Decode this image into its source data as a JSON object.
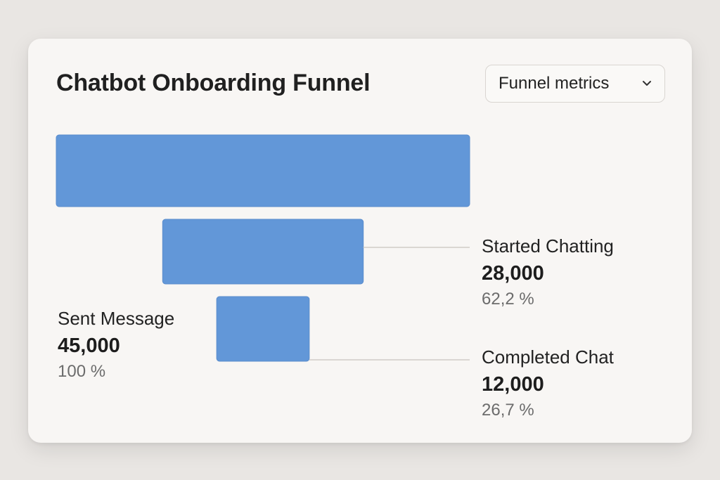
{
  "card": {
    "title": "Chatbot Onboarding Funnel",
    "dropdown": {
      "selected": "Funnel metrics",
      "icon": "chevron-down-icon"
    }
  },
  "colors": {
    "bar": "#6297d8",
    "connector": "#cfcbc7",
    "card_bg": "#f8f6f4",
    "page_bg": "#e9e6e3"
  },
  "chart_data": {
    "type": "funnel",
    "title": "Chatbot Onboarding Funnel",
    "stages": [
      {
        "name": "Sent Message",
        "value": 45000,
        "value_label": "45,000",
        "percent": 100,
        "percent_label": "100 %"
      },
      {
        "name": "Started Chatting",
        "value": 28000,
        "value_label": "28,000",
        "percent": 62.2,
        "percent_label": "62,2 %"
      },
      {
        "name": "Completed Chat",
        "value": 12000,
        "value_label": "12,000",
        "percent": 26.7,
        "percent_label": "26,7 %"
      }
    ]
  }
}
